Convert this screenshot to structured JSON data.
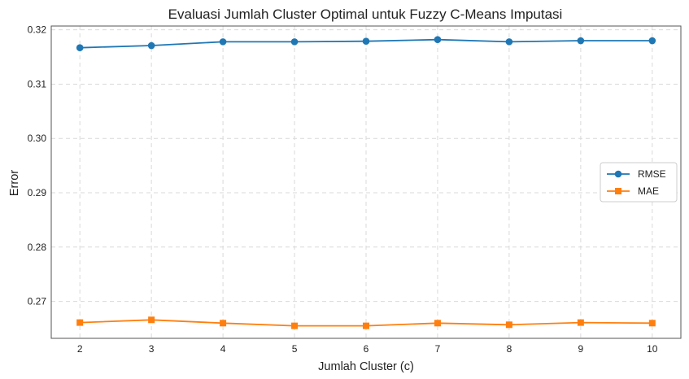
{
  "chart_data": {
    "type": "line",
    "title": "Evaluasi Jumlah Cluster Optimal untuk Fuzzy C-Means Imputasi",
    "xlabel": "Jumlah Cluster (c)",
    "ylabel": "Error",
    "x": [
      2,
      3,
      4,
      5,
      6,
      7,
      8,
      9,
      10
    ],
    "xlim": [
      1.6,
      10.4
    ],
    "ylim": [
      0.2632,
      0.3207
    ],
    "xticks": [
      "2",
      "3",
      "4",
      "5",
      "6",
      "7",
      "8",
      "9",
      "10"
    ],
    "yticks": [
      0.27,
      0.28,
      0.29,
      0.3,
      0.31,
      0.32
    ],
    "ytick_labels": [
      "0.27",
      "0.28",
      "0.29",
      "0.30",
      "0.31",
      "0.32"
    ],
    "grid": true,
    "legend_position": "center-right",
    "series": [
      {
        "name": "RMSE",
        "color": "#1f77b4",
        "marker": "circle",
        "values": [
          0.3167,
          0.3171,
          0.3178,
          0.3178,
          0.3179,
          0.3182,
          0.3178,
          0.318,
          0.318
        ]
      },
      {
        "name": "MAE",
        "color": "#ff7f0e",
        "marker": "square",
        "values": [
          0.2661,
          0.2666,
          0.266,
          0.2655,
          0.2655,
          0.266,
          0.2657,
          0.2661,
          0.266
        ]
      }
    ]
  }
}
